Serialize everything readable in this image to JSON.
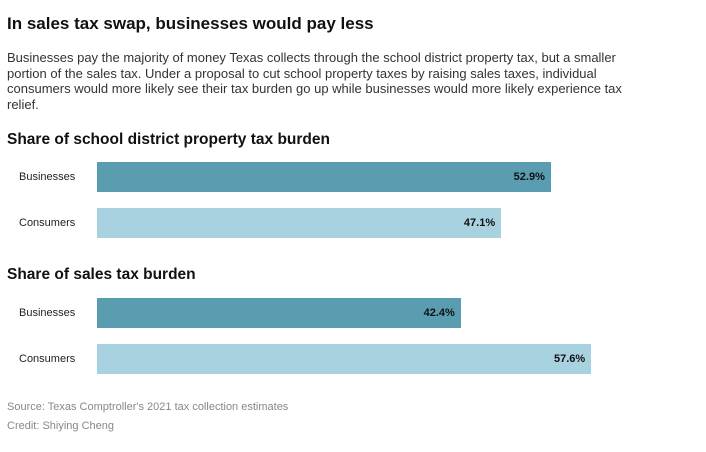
{
  "header": {
    "title": "In sales tax swap, businesses would pay less",
    "description": "Businesses pay the majority of money Texas collects through the school district property tax, but a smaller portion of the sales tax. Under a proposal to cut school property taxes by raising sales taxes, individual consumers would more likely see their tax burden go up while businesses would more likely experience tax relief."
  },
  "colors": {
    "businesses": "#5a9cb0",
    "consumers": "#a8d2e0"
  },
  "chart_data": [
    {
      "type": "bar",
      "orientation": "horizontal",
      "title": "Share of school district property tax burden",
      "categories": [
        "Businesses",
        "Consumers"
      ],
      "values": [
        52.9,
        47.1
      ],
      "value_labels": [
        "52.9%",
        "47.1%"
      ],
      "unit": "%",
      "xlim": [
        0,
        100
      ],
      "grid": false,
      "legend": "none"
    },
    {
      "type": "bar",
      "orientation": "horizontal",
      "title": "Share of sales tax burden",
      "categories": [
        "Businesses",
        "Consumers"
      ],
      "values": [
        42.4,
        57.6
      ],
      "value_labels": [
        "42.4%",
        "57.6%"
      ],
      "unit": "%",
      "xlim": [
        0,
        100
      ],
      "grid": false,
      "legend": "none"
    }
  ],
  "footer": {
    "source": "Source: Texas Comptroller's 2021 tax collection estimates",
    "credit": "Credit: Shiying Cheng"
  }
}
